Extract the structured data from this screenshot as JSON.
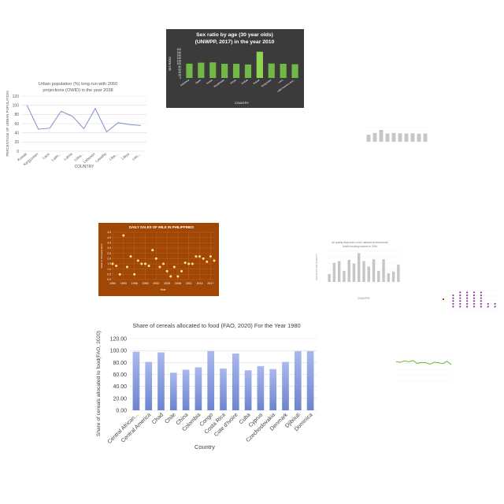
{
  "chart_data": [
    {
      "id": "urban",
      "type": "line",
      "title": "Urban population (%) long-run with 2050 projections (OWID) in the year 2038",
      "xlabel": "COUNTRY",
      "ylabel": "PERCENTAGE OF URBAN POPULATION",
      "categories": [
        "Kuwait",
        "Kyrgyzstan",
        "Laos",
        "Latin...",
        "Latvia",
        "Leba...",
        "Lebanon",
        "Lesotho",
        "Libe...",
        "Libya",
        "Liec..."
      ],
      "values": [
        100,
        48,
        50,
        87,
        76,
        49,
        93,
        42,
        62,
        58,
        56
      ],
      "ylim": [
        0,
        120
      ],
      "yticks": [
        0,
        20,
        40,
        60,
        80,
        100,
        120
      ],
      "colors": {
        "line": "#7f8fce",
        "grid": "#d9d9d9",
        "text": "#595959"
      }
    },
    {
      "id": "sexratio",
      "type": "bar",
      "title": "Sex ratio by age (30 year olds) (UNWPP, 2017) in the year 2010",
      "xlabel": "COUNTRY",
      "ylabel": "SEX RATIO",
      "categories": [
        "Indonesia",
        "Japan",
        "Jordan",
        "Kazakhstan",
        "Kenya",
        "Kiribati",
        "Kuwait",
        "Kyrgyzstan",
        "Laos",
        "Latin America and..."
      ],
      "values": [
        101,
        108,
        110,
        100,
        100,
        95,
        185,
        102,
        100,
        97
      ],
      "ylim": [
        0,
        200
      ],
      "yticks": [
        0,
        20,
        40,
        60,
        80,
        100,
        120,
        140,
        160,
        180,
        200
      ],
      "colors": {
        "bar": "#72b846",
        "bar_highlight": "#90d454",
        "background": "#3b3b3b",
        "text": "#ffffff"
      }
    },
    {
      "id": "sexratio-small",
      "type": "bar",
      "title": "",
      "values": [
        60,
        75,
        100,
        70,
        75,
        72,
        70,
        72,
        68,
        70
      ],
      "ylim": [
        0,
        120
      ],
      "colors": {
        "bar": "#c6c6c6"
      }
    },
    {
      "id": "milk",
      "type": "scatter",
      "title": "DAILY SALES OF MILK IN PHILIPPINES",
      "xlabel": "Year",
      "ylabel": "Sales in thousand liters",
      "x": [
        1990,
        1991,
        1992,
        1993,
        1994,
        1995,
        1996,
        1997,
        1998,
        1999,
        2000,
        2001,
        2002,
        2003,
        2004,
        2005,
        2006,
        2007,
        2008,
        2009,
        2010,
        2011,
        2012,
        2013,
        2014,
        2015,
        2016,
        2017,
        2018
      ],
      "y": [
        1.5,
        1.3,
        0.5,
        4.2,
        1.2,
        2.2,
        0.5,
        1.8,
        1.5,
        1.5,
        1.3,
        2.8,
        2.0,
        1.2,
        1.5,
        0.8,
        0.3,
        1.2,
        0.3,
        0.8,
        1.6,
        1.5,
        1.5,
        2.2,
        2.2,
        2.0,
        1.7,
        2.2,
        1.8
      ],
      "xticks": [
        1990,
        1993,
        1996,
        1999,
        2002,
        2005,
        2008,
        2011,
        2014,
        2017
      ],
      "yticks": [
        0.0,
        0.5,
        1.0,
        1.5,
        2.0,
        2.5,
        3.0,
        3.5,
        4.0,
        4.5
      ],
      "ylim": [
        0,
        4.5
      ],
      "colors": {
        "background": "#a14705",
        "point": "#ffe680",
        "text": "#ffffff",
        "grid": "#c46a2a"
      }
    },
    {
      "id": "air",
      "type": "bar",
      "title": "Air quality Measures on the national environmental health tracking network in 2006",
      "xlabel": "COUNTRY",
      "ylabel": "VALUE OF AIR QUALITY",
      "values": [
        13,
        31,
        34,
        18,
        36,
        30,
        47,
        34,
        25,
        37,
        18,
        37,
        14,
        17,
        28
      ],
      "ylim": [
        0,
        50
      ],
      "colors": {
        "bar": "#c6c6c6",
        "text": "#7f7f7f"
      }
    },
    {
      "id": "tiny",
      "type": "scatter",
      "title": "",
      "values": [
        [
          1,
          2,
          3,
          4,
          5
        ],
        [
          1,
          2,
          3,
          4,
          5,
          6
        ],
        [
          1,
          2,
          3,
          4,
          5,
          6
        ],
        [
          1,
          2,
          3,
          4,
          5,
          6
        ],
        [
          1,
          2,
          3,
          4,
          5,
          6
        ],
        [
          1,
          2
        ],
        [
          1,
          2
        ]
      ],
      "colors": {
        "point": "#8e3a9c",
        "accent": "#c0392b"
      }
    },
    {
      "id": "cereals",
      "type": "bar",
      "title": "Share of cereals allocated to food (FAO, 2020)  For the Year 1980",
      "xlabel": "Country",
      "ylabel": "Share of cereals allocated to food(FAO, 2020)",
      "categories": [
        "Central African...",
        "Central America",
        "Chad",
        "Chile",
        "China",
        "Colombia",
        "Congo",
        "Costa Rica",
        "Cote d'Ivoire",
        "Cuba",
        "Cyprus",
        "Czechoslovakia",
        "Denmark",
        "Djibouti",
        "Dominica"
      ],
      "values": [
        98,
        81,
        97,
        63,
        68,
        72,
        99,
        70,
        95,
        67,
        74,
        69,
        81,
        99,
        99
      ],
      "ylim": [
        0,
        120
      ],
      "yticks": [
        "0.00",
        "20.00",
        "40.00",
        "60.00",
        "80.00",
        "100.00",
        "120.00"
      ],
      "colors": {
        "bar_top": "#a9b9ec",
        "bar_bottom": "#6d84cf",
        "grid": "#d9d9d9",
        "text": "#404040"
      }
    },
    {
      "id": "green",
      "type": "line",
      "title": "",
      "values": [
        82,
        80,
        86,
        82,
        87,
        75,
        79,
        78,
        72,
        80,
        78,
        74,
        84,
        70
      ],
      "ylim": [
        0,
        100
      ],
      "colors": {
        "line": "#5fae27"
      }
    }
  ]
}
